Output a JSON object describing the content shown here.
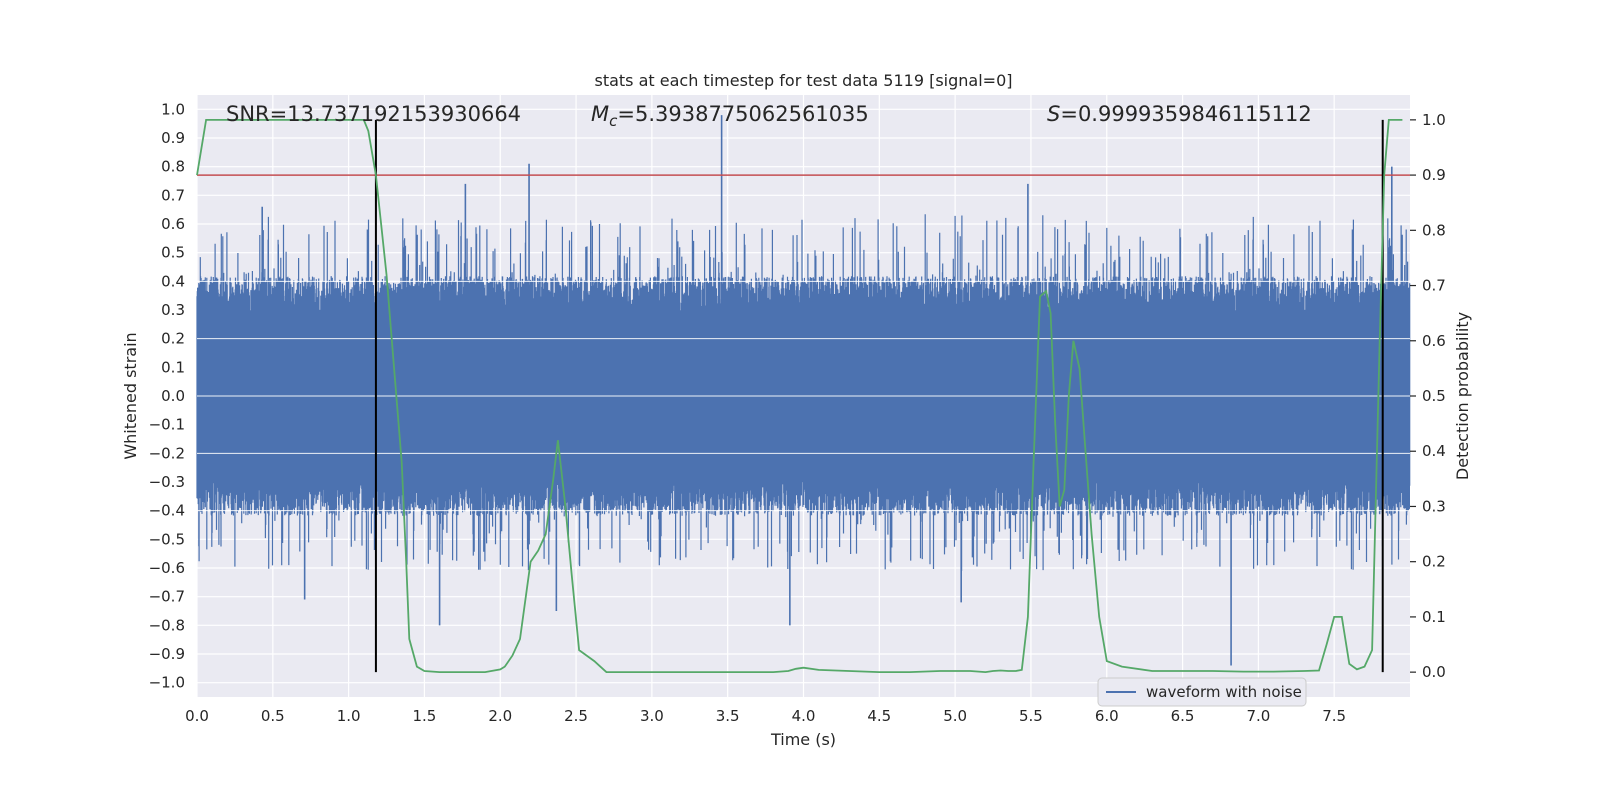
{
  "chart_data": {
    "type": "line",
    "title": "stats at each timestep for test data 5119 [signal=0]",
    "xlabel": "Time (s)",
    "ylabel_left": "Whitened strain",
    "ylabel_right": "Detection probability",
    "xlim": [
      0,
      8
    ],
    "ylim_left": [
      -1.05,
      1.05
    ],
    "ylim_right": [
      -0.045,
      1.045
    ],
    "x_ticks": [
      0,
      0.5,
      1,
      1.5,
      2,
      2.5,
      3,
      3.5,
      4,
      4.5,
      5,
      5.5,
      6,
      6.5,
      7,
      7.5
    ],
    "x_tick_labels": [
      "0.0",
      "0.5",
      "1.0",
      "1.5",
      "2.0",
      "2.5",
      "3.0",
      "3.5",
      "4.0",
      "4.5",
      "5.0",
      "5.5",
      "6.0",
      "6.5",
      "7.0",
      "7.5"
    ],
    "y_left_ticks": [
      -1.0,
      -0.9,
      -0.8,
      -0.7,
      -0.6,
      -0.5,
      -0.4,
      -0.3,
      -0.2,
      -0.1,
      0.0,
      0.1,
      0.2,
      0.3,
      0.4,
      0.5,
      0.6,
      0.7,
      0.8,
      0.9,
      1.0
    ],
    "y_left_tick_labels": [
      "−1.0",
      "−0.9",
      "−0.8",
      "−0.7",
      "−0.6",
      "−0.5",
      "−0.4",
      "−0.3",
      "−0.2",
      "−0.1",
      "0.0",
      "0.1",
      "0.2",
      "0.3",
      "0.4",
      "0.5",
      "0.6",
      "0.7",
      "0.8",
      "0.9",
      "1.0"
    ],
    "y_right_ticks": [
      0.0,
      0.1,
      0.2,
      0.3,
      0.4,
      0.5,
      0.6,
      0.7,
      0.8,
      0.9,
      1.0
    ],
    "y_right_tick_labels": [
      "0.0",
      "0.1",
      "0.2",
      "0.3",
      "0.4",
      "0.5",
      "0.6",
      "0.7",
      "0.8",
      "0.9",
      "1.0"
    ],
    "grid": true,
    "legend": {
      "position": "lower-right",
      "entries": [
        "waveform with noise"
      ]
    },
    "annotations": {
      "snr": "SNR=13.737192153930664",
      "mc_symbol": "M",
      "mc_sub": "c",
      "mc_value": "=5.3938775062561035",
      "s_symbol": "S",
      "s_value": "=0.9999359846115112"
    },
    "threshold_right": 0.9,
    "vertical_lines_x": [
      1.18,
      7.82
    ],
    "series": [
      {
        "name": "waveform with noise",
        "axis": "left",
        "color": "#4c72b0",
        "x_range": [
          0,
          8
        ],
        "samples": 4096,
        "envelope": {
          "core": 0.38,
          "peak_max": 0.98,
          "trough_min": -0.94
        },
        "spikes": [
          {
            "x": 0.43,
            "y": 0.66
          },
          {
            "x": 0.71,
            "y": -0.71
          },
          {
            "x": 1.6,
            "y": -0.8
          },
          {
            "x": 1.77,
            "y": 0.74
          },
          {
            "x": 2.19,
            "y": 0.81
          },
          {
            "x": 2.37,
            "y": -0.75
          },
          {
            "x": 3.46,
            "y": 0.98
          },
          {
            "x": 3.91,
            "y": -0.8
          },
          {
            "x": 5.04,
            "y": -0.72
          },
          {
            "x": 5.48,
            "y": 0.74
          },
          {
            "x": 6.82,
            "y": -0.94
          },
          {
            "x": 7.88,
            "y": 0.8
          }
        ]
      },
      {
        "name": "",
        "axis": "right",
        "color": "#55a868",
        "x": [
          0.0,
          0.06,
          0.2,
          0.4,
          0.6,
          0.8,
          1.0,
          1.1,
          1.13,
          1.18,
          1.25,
          1.3,
          1.35,
          1.38,
          1.4,
          1.45,
          1.5,
          1.6,
          1.7,
          1.8,
          1.9,
          2.0,
          2.03,
          2.08,
          2.13,
          2.2,
          2.25,
          2.3,
          2.35,
          2.38,
          2.43,
          2.47,
          2.52,
          2.57,
          2.62,
          2.66,
          2.7,
          2.75,
          2.8,
          3.0,
          3.2,
          3.4,
          3.6,
          3.8,
          3.9,
          3.95,
          4.0,
          4.1,
          4.3,
          4.5,
          4.7,
          4.9,
          5.1,
          5.2,
          5.25,
          5.3,
          5.35,
          5.4,
          5.44,
          5.48,
          5.52,
          5.56,
          5.6,
          5.63,
          5.66,
          5.69,
          5.72,
          5.75,
          5.78,
          5.82,
          5.86,
          5.9,
          5.95,
          6.0,
          6.1,
          6.3,
          6.5,
          6.7,
          6.9,
          7.1,
          7.3,
          7.4,
          7.45,
          7.5,
          7.55,
          7.6,
          7.65,
          7.7,
          7.75,
          7.8,
          7.83,
          7.86,
          7.9,
          7.95
        ],
        "y": [
          0.9,
          1.0,
          1.0,
          1.0,
          1.0,
          1.0,
          1.0,
          1.0,
          0.98,
          0.9,
          0.72,
          0.55,
          0.38,
          0.2,
          0.06,
          0.01,
          0.002,
          0.0,
          0.0,
          0.0,
          0.0,
          0.005,
          0.01,
          0.03,
          0.06,
          0.2,
          0.22,
          0.25,
          0.35,
          0.42,
          0.3,
          0.18,
          0.04,
          0.03,
          0.02,
          0.01,
          0.0,
          0.0,
          0.0,
          0.0,
          0.0,
          0.0,
          0.0,
          0.0,
          0.002,
          0.006,
          0.008,
          0.004,
          0.002,
          0.0,
          0.0,
          0.002,
          0.002,
          0.0,
          0.002,
          0.003,
          0.002,
          0.002,
          0.004,
          0.1,
          0.4,
          0.68,
          0.69,
          0.65,
          0.45,
          0.3,
          0.33,
          0.5,
          0.6,
          0.55,
          0.4,
          0.25,
          0.1,
          0.02,
          0.01,
          0.002,
          0.002,
          0.002,
          0.001,
          0.001,
          0.002,
          0.003,
          0.05,
          0.1,
          0.1,
          0.015,
          0.005,
          0.01,
          0.04,
          0.6,
          0.9,
          1.0,
          1.0,
          1.0
        ]
      }
    ]
  }
}
